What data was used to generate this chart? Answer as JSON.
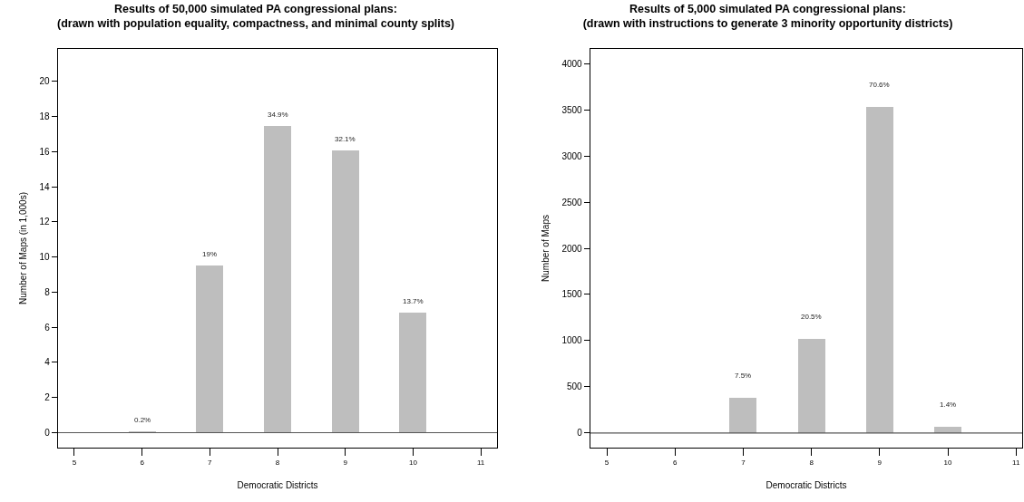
{
  "chart_data": [
    {
      "type": "bar",
      "title": "Results of 50,000 simulated PA congressional plans:\n(drawn with population equality, compactness, and minimal county splits)",
      "xlabel": "Democratic Districts",
      "ylabel": "Number of Maps (in 1,000s)",
      "x": [
        6,
        7,
        8,
        9,
        10
      ],
      "values": [
        0.1,
        9.5,
        17.45,
        16.05,
        6.85
      ],
      "color": "#bebebe",
      "xlim": [
        4.76,
        11.24
      ],
      "xticks": [
        5,
        6,
        7,
        8,
        9,
        10,
        11
      ],
      "ylim": [
        -0.85,
        21.84
      ],
      "yticks": [
        0,
        2,
        4,
        6,
        8,
        10,
        12,
        14,
        16,
        18,
        20
      ],
      "ref_lines": [
        {
          "axis": "y",
          "value": 0,
          "color": "#555555"
        }
      ],
      "annotations": [
        {
          "text": "0.2%",
          "x": 6,
          "y": 0.1
        },
        {
          "text": "19%",
          "x": 7,
          "y": 9.5
        },
        {
          "text": "34.9%",
          "x": 8,
          "y": 17.45
        },
        {
          "text": "32.1%",
          "x": 9,
          "y": 16.05
        },
        {
          "text": "13.7%",
          "x": 10,
          "y": 6.85
        }
      ]
    },
    {
      "type": "bar",
      "title": "Results of 5,000 simulated PA congressional plans:\n(drawn with instructions to generate 3 minority opportunity districts)",
      "xlabel": "Democratic Districts",
      "ylabel": "Number of Maps",
      "x": [
        7,
        8,
        9,
        10
      ],
      "values": [
        380,
        1020,
        3530,
        70
      ],
      "color": "#bebebe",
      "xlim": [
        4.76,
        11.09
      ],
      "xticks": [
        5,
        6,
        7,
        8,
        9,
        10,
        11
      ],
      "ylim": [
        -158,
        4158
      ],
      "yticks": [
        0,
        500,
        1000,
        1500,
        2000,
        2500,
        3000,
        3500,
        4000
      ],
      "ref_lines": [
        {
          "axis": "y",
          "value": 0,
          "color": "#555555"
        }
      ],
      "annotations": [
        {
          "text": "7.5%",
          "x": 7,
          "y": 380
        },
        {
          "text": "20.5%",
          "x": 8,
          "y": 1020
        },
        {
          "text": "70.6%",
          "x": 9,
          "y": 3530
        },
        {
          "text": "1.4%",
          "x": 10,
          "y": 70
        }
      ]
    }
  ]
}
